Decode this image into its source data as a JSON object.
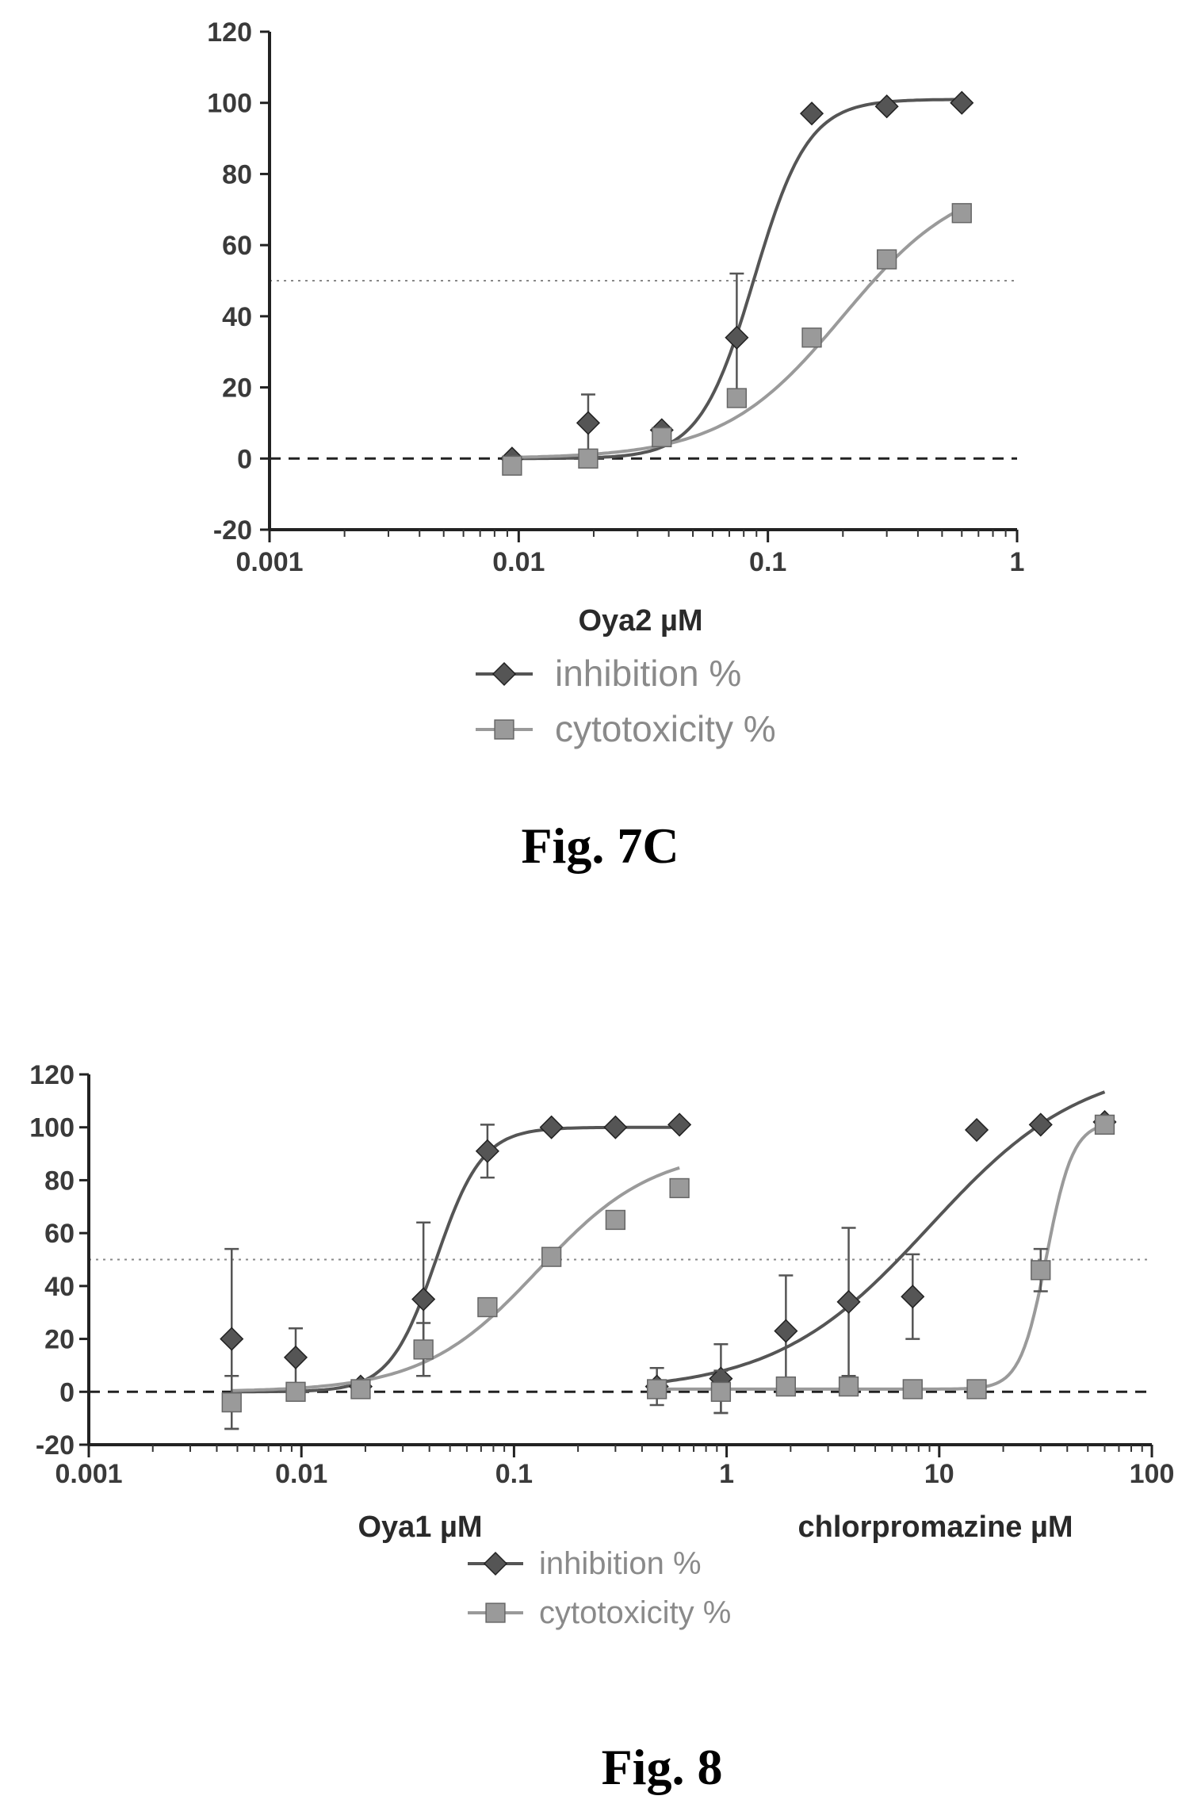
{
  "chart_data": [
    {
      "type": "scatter",
      "caption": "Fig. 7C",
      "title": "",
      "xlabel": "Oya2 µM",
      "ylabel": "",
      "x_scale": "log",
      "xlim": [
        0.001,
        1
      ],
      "ylim": [
        -20,
        120
      ],
      "x_tick_labels": [
        "0.001",
        "0.01",
        "0.1",
        "1"
      ],
      "y_tick_labels": [
        "-20",
        "0",
        "20",
        "40",
        "60",
        "80",
        "100",
        "120"
      ],
      "x_ticks": [
        0.001,
        0.01,
        0.1,
        1
      ],
      "y_ticks": [
        -20,
        0,
        20,
        40,
        60,
        80,
        100,
        120
      ],
      "reference_lines": [
        0,
        50
      ],
      "legend": {
        "placement": "bottom",
        "entries": [
          "inhibition %",
          "cytotoxicity %"
        ]
      },
      "series": [
        {
          "name": "inhibition %",
          "color": "#555555",
          "marker": "diamond",
          "points": [
            {
              "x": 0.0094,
              "y": 0,
              "err": 0
            },
            {
              "x": 0.019,
              "y": 10,
              "err": 8
            },
            {
              "x": 0.0375,
              "y": 8,
              "err": 0
            },
            {
              "x": 0.075,
              "y": 34,
              "err": 18
            },
            {
              "x": 0.15,
              "y": 97,
              "err": 0
            },
            {
              "x": 0.3,
              "y": 99,
              "err": 0
            },
            {
              "x": 0.6,
              "y": 100,
              "err": 0
            }
          ],
          "fit": {
            "bottom": 0,
            "top": 101,
            "ec50": 0.088,
            "hill": 4.0
          }
        },
        {
          "name": "cytotoxicity %",
          "color": "#9a9a9a",
          "marker": "square",
          "points": [
            {
              "x": 0.0094,
              "y": -2,
              "err": 0
            },
            {
              "x": 0.019,
              "y": 0,
              "err": 0
            },
            {
              "x": 0.0375,
              "y": 6,
              "err": 0
            },
            {
              "x": 0.075,
              "y": 17,
              "err": 0
            },
            {
              "x": 0.15,
              "y": 34,
              "err": 0
            },
            {
              "x": 0.3,
              "y": 56,
              "err": 0
            },
            {
              "x": 0.6,
              "y": 69,
              "err": 0
            }
          ],
          "fit": {
            "bottom": 0,
            "top": 80,
            "ec50": 0.2,
            "hill": 1.8
          }
        }
      ]
    },
    {
      "type": "scatter",
      "caption": "Fig. 8",
      "title": "",
      "xlabels": [
        "Oya1 µM",
        "chlorpromazine µM"
      ],
      "ylabel": "",
      "x_scale": "log",
      "xlim": [
        0.001,
        100
      ],
      "ylim": [
        -20,
        120
      ],
      "x_tick_labels": [
        "0.001",
        "0.01",
        "0.1",
        "1",
        "10",
        "100"
      ],
      "y_tick_labels": [
        "-20",
        "0",
        "20",
        "40",
        "60",
        "80",
        "100",
        "120"
      ],
      "x_ticks": [
        0.001,
        0.01,
        0.1,
        1,
        10,
        100
      ],
      "y_ticks": [
        -20,
        0,
        20,
        40,
        60,
        80,
        100,
        120
      ],
      "reference_lines": [
        0,
        50
      ],
      "legend": {
        "placement": "bottom",
        "entries": [
          "inhibition %",
          "cytotoxicity %"
        ]
      },
      "series": [
        {
          "name": "inhibition %",
          "compound": "Oya1",
          "color": "#555555",
          "marker": "diamond",
          "points": [
            {
              "x": 0.0047,
              "y": 20,
              "err": 34
            },
            {
              "x": 0.0094,
              "y": 13,
              "err": 11
            },
            {
              "x": 0.019,
              "y": 2,
              "err": 0
            },
            {
              "x": 0.0375,
              "y": 35,
              "err": 29
            },
            {
              "x": 0.075,
              "y": 91,
              "err": 10
            },
            {
              "x": 0.15,
              "y": 100,
              "err": 0
            },
            {
              "x": 0.3,
              "y": 100,
              "err": 0
            },
            {
              "x": 0.6,
              "y": 101,
              "err": 0
            }
          ],
          "fit": {
            "bottom": 0,
            "top": 100,
            "ec50": 0.043,
            "hill": 4.0
          }
        },
        {
          "name": "cytotoxicity %",
          "compound": "Oya1",
          "color": "#9a9a9a",
          "marker": "square",
          "points": [
            {
              "x": 0.0047,
              "y": -4,
              "err": 10
            },
            {
              "x": 0.0094,
              "y": 0,
              "err": 0
            },
            {
              "x": 0.019,
              "y": 1,
              "err": 0
            },
            {
              "x": 0.0375,
              "y": 16,
              "err": 10
            },
            {
              "x": 0.075,
              "y": 32,
              "err": 0
            },
            {
              "x": 0.15,
              "y": 51,
              "err": 0
            },
            {
              "x": 0.3,
              "y": 65,
              "err": 0
            },
            {
              "x": 0.6,
              "y": 77,
              "err": 0
            }
          ],
          "fit": {
            "bottom": 0,
            "top": 92,
            "ec50": 0.13,
            "hill": 1.6
          }
        },
        {
          "name": "inhibition %",
          "compound": "chlorpromazine",
          "color": "#555555",
          "marker": "diamond",
          "points": [
            {
              "x": 0.47,
              "y": 2,
              "err": 7
            },
            {
              "x": 0.94,
              "y": 5,
              "err": 13
            },
            {
              "x": 1.9,
              "y": 23,
              "err": 21
            },
            {
              "x": 3.75,
              "y": 34,
              "err": 28
            },
            {
              "x": 7.5,
              "y": 36,
              "err": 16
            },
            {
              "x": 15,
              "y": 99,
              "err": 0
            },
            {
              "x": 30,
              "y": 101,
              "err": 0
            },
            {
              "x": 60,
              "y": 102,
              "err": 0
            }
          ],
          "fit": {
            "bottom": 0,
            "top": 125,
            "ec50": 9.0,
            "hill": 1.2
          }
        },
        {
          "name": "cytotoxicity %",
          "compound": "chlorpromazine",
          "color": "#9a9a9a",
          "marker": "square",
          "points": [
            {
              "x": 0.47,
              "y": 1,
              "err": 0
            },
            {
              "x": 0.94,
              "y": 0,
              "err": 8
            },
            {
              "x": 1.9,
              "y": 2,
              "err": 0
            },
            {
              "x": 3.75,
              "y": 2,
              "err": 0
            },
            {
              "x": 7.5,
              "y": 1,
              "err": 0
            },
            {
              "x": 15,
              "y": 1,
              "err": 0
            },
            {
              "x": 30,
              "y": 46,
              "err": 8
            },
            {
              "x": 60,
              "y": 101,
              "err": 0
            }
          ],
          "fit": {
            "bottom": 1,
            "top": 102,
            "ec50": 32,
            "hill": 7.0
          }
        }
      ]
    }
  ]
}
